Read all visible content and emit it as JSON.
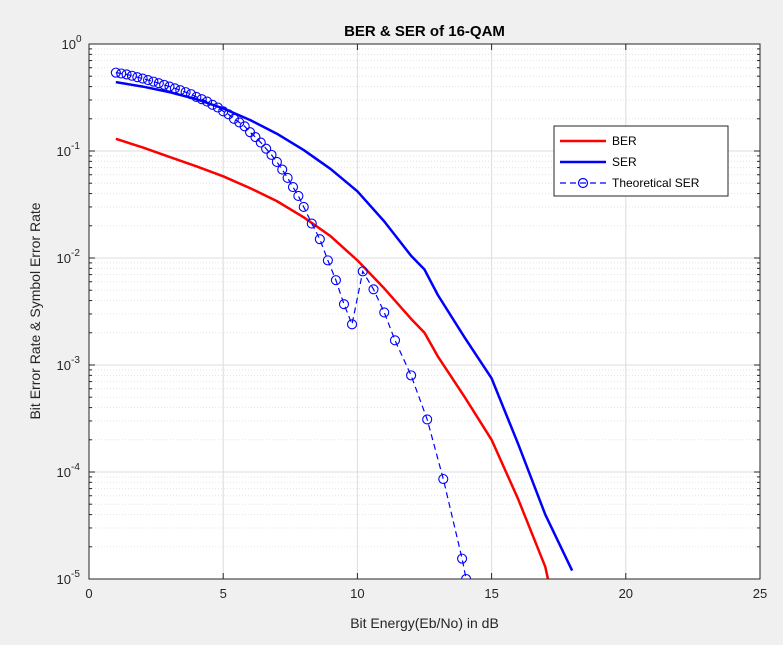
{
  "chart_data": {
    "type": "line",
    "title": "BER & SER of 16-QAM",
    "xlabel": "Bit Energy(Eb/No) in dB",
    "ylabel": "Bit Error Rate & Symbol Error Rate",
    "xlim": [
      0,
      25
    ],
    "ylim": [
      1e-05,
      1
    ],
    "yscale": "log",
    "grid": "on (major and minor)",
    "legend_position": "top-right",
    "x_ticks": [
      {
        "value": 0,
        "label": "0"
      },
      {
        "value": 5,
        "label": "5"
      },
      {
        "value": 10,
        "label": "10"
      },
      {
        "value": 15,
        "label": "15"
      },
      {
        "value": 20,
        "label": "20"
      },
      {
        "value": 25,
        "label": "25"
      }
    ],
    "y_ticks": [
      {
        "value": 1,
        "base": "10",
        "exp": "0"
      },
      {
        "value": 0.1,
        "base": "10",
        "exp": "-1"
      },
      {
        "value": 0.01,
        "base": "10",
        "exp": "-2"
      },
      {
        "value": 0.001,
        "base": "10",
        "exp": "-3"
      },
      {
        "value": 0.0001,
        "base": "10",
        "exp": "-4"
      },
      {
        "value": 1e-05,
        "base": "10",
        "exp": "-5"
      }
    ],
    "series": [
      {
        "name": "BER",
        "color": "#ff0000",
        "style": "solid",
        "marker": "none",
        "points": [
          [
            1,
            0.13
          ],
          [
            2,
            0.108
          ],
          [
            3,
            0.088
          ],
          [
            4,
            0.072
          ],
          [
            5,
            0.058
          ],
          [
            6,
            0.045
          ],
          [
            7,
            0.034
          ],
          [
            8,
            0.024
          ],
          [
            9,
            0.016
          ],
          [
            10,
            0.0095
          ],
          [
            11,
            0.0052
          ],
          [
            12,
            0.0027
          ],
          [
            12.5,
            0.002
          ],
          [
            13,
            0.0012
          ],
          [
            14,
            0.0005
          ],
          [
            15,
            0.0002
          ],
          [
            16,
            5.5e-05
          ],
          [
            17,
            1.3e-05
          ],
          [
            17.1,
            1e-05
          ]
        ]
      },
      {
        "name": "SER",
        "color": "#0000ff",
        "style": "solid",
        "marker": "none",
        "points": [
          [
            1,
            0.44
          ],
          [
            2,
            0.4
          ],
          [
            3,
            0.355
          ],
          [
            4,
            0.305
          ],
          [
            5,
            0.25
          ],
          [
            6,
            0.195
          ],
          [
            7,
            0.145
          ],
          [
            8,
            0.102
          ],
          [
            9,
            0.068
          ],
          [
            10,
            0.042
          ],
          [
            11,
            0.022
          ],
          [
            12,
            0.0105
          ],
          [
            12.5,
            0.0078
          ],
          [
            13,
            0.0045
          ],
          [
            14,
            0.0018
          ],
          [
            15,
            0.00075
          ],
          [
            16,
            0.00018
          ],
          [
            17,
            4e-05
          ],
          [
            18,
            1.2e-05
          ]
        ]
      },
      {
        "name": "Theoretical SER",
        "color": "#0000ff",
        "style": "dashed",
        "marker": "circle",
        "points": [
          [
            1,
            0.54
          ],
          [
            1.2,
            0.53
          ],
          [
            1.4,
            0.52
          ],
          [
            1.6,
            0.505
          ],
          [
            1.8,
            0.49
          ],
          [
            2,
            0.475
          ],
          [
            2.2,
            0.46
          ],
          [
            2.4,
            0.445
          ],
          [
            2.6,
            0.43
          ],
          [
            2.8,
            0.415
          ],
          [
            3,
            0.4
          ],
          [
            3.2,
            0.385
          ],
          [
            3.4,
            0.37
          ],
          [
            3.6,
            0.355
          ],
          [
            3.8,
            0.34
          ],
          [
            4,
            0.32
          ],
          [
            4.2,
            0.305
          ],
          [
            4.4,
            0.29
          ],
          [
            4.6,
            0.27
          ],
          [
            4.8,
            0.255
          ],
          [
            5,
            0.235
          ],
          [
            5.2,
            0.22
          ],
          [
            5.4,
            0.2
          ],
          [
            5.6,
            0.185
          ],
          [
            5.8,
            0.17
          ],
          [
            6,
            0.15
          ],
          [
            6.2,
            0.135
          ],
          [
            6.4,
            0.12
          ],
          [
            6.6,
            0.105
          ],
          [
            6.8,
            0.092
          ],
          [
            7,
            0.079
          ],
          [
            7.2,
            0.067
          ],
          [
            7.4,
            0.056
          ],
          [
            7.6,
            0.046
          ],
          [
            7.8,
            0.038
          ],
          [
            8,
            0.03
          ],
          [
            8.3,
            0.021
          ],
          [
            8.6,
            0.015
          ],
          [
            8.9,
            0.0095
          ],
          [
            9.2,
            0.0062
          ],
          [
            9.5,
            0.0037
          ],
          [
            9.8,
            0.0024
          ],
          [
            10.2,
            0.0075
          ],
          [
            10.6,
            0.0051
          ],
          [
            11,
            0.0031
          ],
          [
            11.4,
            0.0017
          ],
          [
            12,
            0.0008
          ],
          [
            12.6,
            0.00031
          ],
          [
            13.2,
            8.6e-05
          ],
          [
            13.9,
            1.55e-05
          ],
          [
            14.05,
            1e-05
          ]
        ]
      }
    ]
  }
}
